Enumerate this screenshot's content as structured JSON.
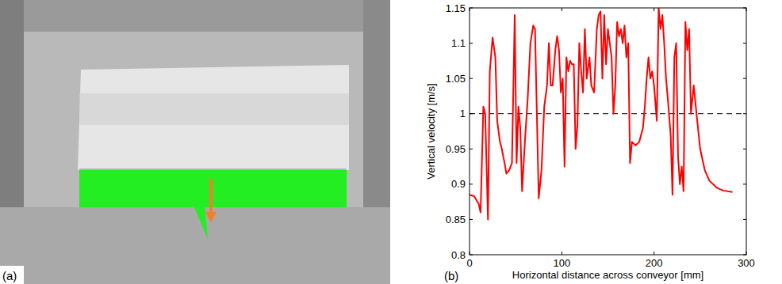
{
  "panel_labels": [
    "(a)",
    "(b)"
  ],
  "chart_data": {
    "type": "line",
    "x_label": "Horizontal distance across conveyor [mm]",
    "y_label": "Vertical velocity [m/s]",
    "color": "#ff0000",
    "reference_line": 1,
    "xlim": [
      0,
      300
    ],
    "xticks": [
      0,
      100,
      200,
      300
    ],
    "ylim": [
      0.8,
      1.15
    ],
    "yticks": [
      0.8,
      0.85,
      0.9,
      0.95,
      1,
      1.05,
      1.1,
      1.15
    ],
    "grid": false,
    "x": [
      0,
      5,
      10,
      12,
      15,
      17,
      20,
      22,
      25,
      28,
      30,
      33,
      35,
      38,
      40,
      43,
      46,
      49,
      51,
      53,
      55,
      57,
      60,
      63,
      66,
      69,
      71,
      73,
      75,
      78,
      81,
      84,
      86,
      88,
      90,
      93,
      95,
      97,
      99,
      101,
      103,
      105,
      107,
      109,
      111,
      113,
      115,
      117,
      119,
      121,
      123,
      125,
      127,
      130,
      132,
      135,
      138,
      140,
      142,
      144,
      146,
      148,
      150,
      152,
      154,
      156,
      158,
      160,
      162,
      164,
      166,
      168,
      170,
      172,
      174,
      176,
      180,
      184,
      188,
      190,
      192,
      194,
      196,
      198,
      200,
      203,
      205,
      207,
      209,
      211,
      213,
      215,
      218,
      220,
      222,
      224,
      226,
      228,
      230,
      232,
      234,
      236,
      238,
      240,
      243,
      246,
      250,
      255,
      260,
      268,
      275,
      285
    ],
    "values": [
      0.885,
      0.883,
      0.872,
      0.86,
      1.01,
      1.0,
      0.85,
      1.06,
      1.108,
      1.08,
      0.99,
      0.96,
      0.95,
      0.93,
      0.915,
      0.92,
      0.93,
      1.14,
      0.93,
      1.01,
      0.98,
      0.89,
      0.96,
      1.02,
      1.1,
      1.125,
      1.12,
      1.0,
      0.88,
      0.92,
      1.01,
      1.04,
      1.1,
      1.04,
      1.04,
      1.09,
      1.11,
      1.09,
      1.03,
      1.05,
      0.925,
      1.08,
      1.06,
      1.075,
      1.07,
      1.07,
      0.95,
      0.985,
      1.1,
      1.06,
      1.03,
      1.12,
      1.05,
      1.08,
      1.04,
      1.03,
      1.12,
      1.14,
      1.145,
      1.05,
      1.14,
      1.07,
      1.12,
      1.1,
      1.08,
      1.0,
      1.04,
      1.13,
      1.11,
      1.12,
      1.1,
      1.125,
      1.08,
      1.1,
      0.93,
      0.96,
      0.955,
      0.96,
      0.98,
      1.01,
      1.05,
      1.08,
      1.05,
      1.06,
      1.04,
      0.99,
      1.15,
      1.12,
      1.14,
      1.1,
      1.05,
      1.02,
      0.97,
      0.885,
      1.08,
      1.1,
      0.94,
      0.9,
      0.925,
      0.89,
      1.13,
      1.09,
      1.12,
      1.0,
      1.04,
      1.0,
      0.95,
      0.92,
      0.905,
      0.895,
      0.891,
      0.889
    ]
  }
}
